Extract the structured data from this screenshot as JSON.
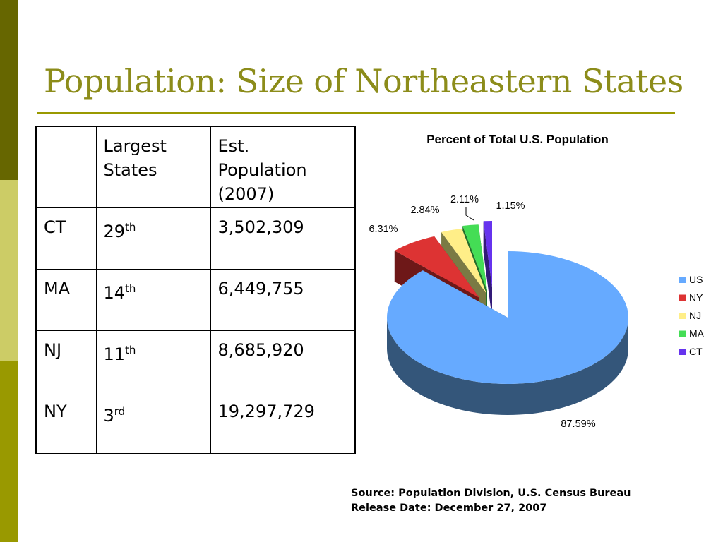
{
  "slide": {
    "title": "Population: Size of Northeastern States",
    "colors": {
      "accent": "#999900",
      "title": "#8c8c1a",
      "bar_dark": "#666600",
      "bar_light": "#cccc66"
    }
  },
  "table": {
    "headers": [
      "",
      "Largest\nStates",
      "Est.\nPopulation\n(2007)"
    ],
    "rows": [
      {
        "state": "CT",
        "rank": "29",
        "rank_suffix": "th",
        "population": "3,502,309"
      },
      {
        "state": "MA",
        "rank": "14",
        "rank_suffix": "th",
        "population": "6,449,755"
      },
      {
        "state": "NJ",
        "rank": "11",
        "rank_suffix": "th",
        "population": "8,685,920"
      },
      {
        "state": "NY",
        "rank": "3",
        "rank_suffix": "rd",
        "population": "19,297,729"
      }
    ]
  },
  "chart_data": {
    "type": "pie",
    "title": "Percent of Total U.S. Population",
    "categories": [
      "US",
      "NY",
      "NJ",
      "MA",
      "CT"
    ],
    "values": [
      87.59,
      6.31,
      2.84,
      2.11,
      1.15
    ],
    "labels": [
      "87.59%",
      "6.31%",
      "2.84%",
      "2.11%",
      "1.15%"
    ],
    "colors": [
      "#66aaff",
      "#dd3333",
      "#ffee88",
      "#44dd55",
      "#6633ee"
    ],
    "side_colors": [
      "#34567a",
      "#6e1818",
      "#7a7a44",
      "#226e2a",
      "#331a77"
    ],
    "exploded": true,
    "three_d": true,
    "legend_position": "right"
  },
  "source": {
    "line1": "Source: Population Division, U.S. Census Bureau",
    "line2": "Release Date: December 27, 2007"
  }
}
